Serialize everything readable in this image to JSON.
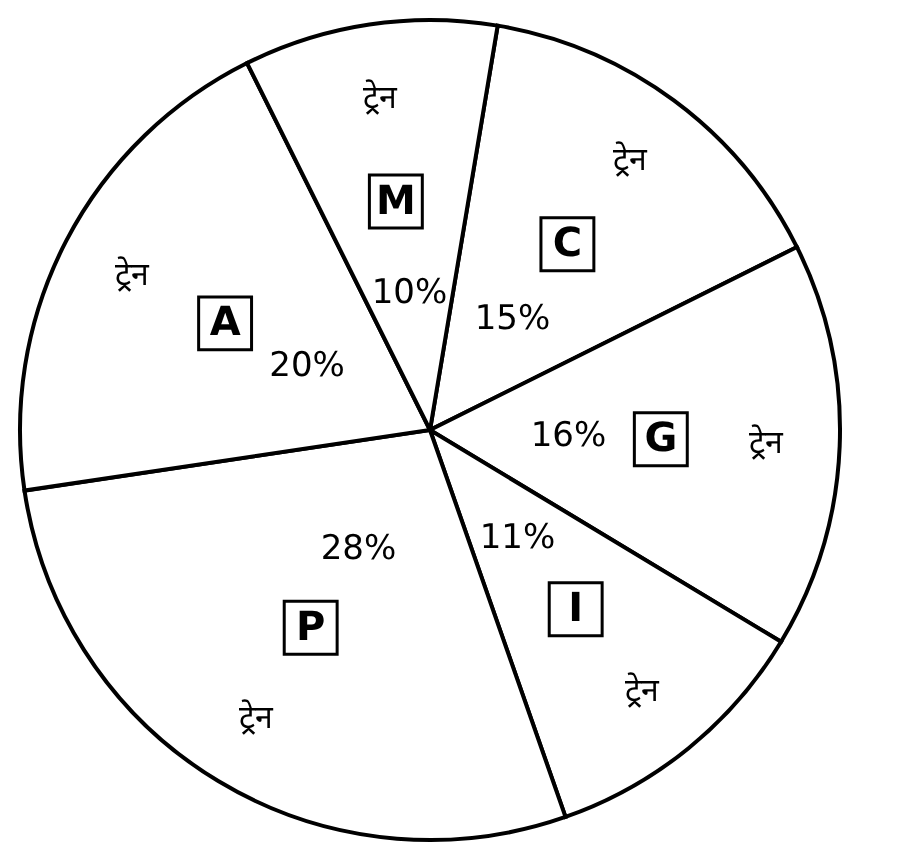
{
  "chart_data": {
    "type": "pie",
    "categories": [
      "C",
      "G",
      "I",
      "P",
      "A",
      "M"
    ],
    "values": [
      15,
      16,
      11,
      28,
      20,
      10
    ],
    "colors": [
      "#ffffff",
      "#ffffff",
      "#ffffff",
      "#ffffff",
      "#ffffff",
      "#ffffff"
    ],
    "value_labels": [
      "15%",
      "16%",
      "11%",
      "28%",
      "20%",
      "10%"
    ],
    "annotations": [
      {
        "text": "ट्रेन",
        "x": "C"
      },
      {
        "text": "ट्रेन",
        "x": "G"
      },
      {
        "text": "ट्रेन",
        "x": "I"
      },
      {
        "text": "ट्रेन",
        "x": "P"
      },
      {
        "text": "ट्रेन",
        "x": "A"
      },
      {
        "text": "ट्रेन",
        "x": "M"
      }
    ]
  }
}
